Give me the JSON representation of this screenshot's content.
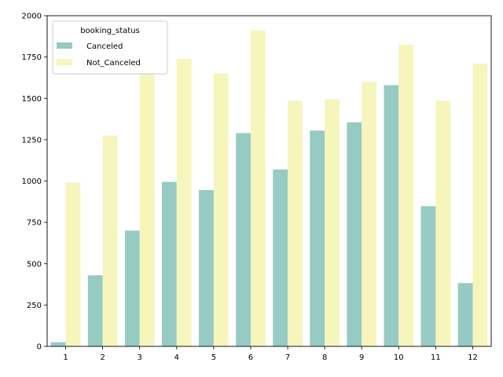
{
  "chart_data": {
    "type": "bar",
    "categories": [
      "1",
      "2",
      "3",
      "4",
      "5",
      "6",
      "7",
      "8",
      "9",
      "10",
      "11",
      "12"
    ],
    "series": [
      {
        "name": "Canceled",
        "color": "#95cbc3",
        "values": [
          25,
          430,
          700,
          995,
          945,
          1290,
          1070,
          1305,
          1355,
          1580,
          848,
          383
        ]
      },
      {
        "name": "Not_Canceled",
        "color": "#f5f5bc",
        "values": [
          990,
          1275,
          1655,
          1740,
          1650,
          1910,
          1485,
          1495,
          1600,
          1825,
          1485,
          1710
        ]
      }
    ],
    "title": "",
    "xlabel": "",
    "ylabel": "",
    "ylim": [
      0,
      2000
    ],
    "yticks": [
      0,
      250,
      500,
      750,
      1000,
      1250,
      1500,
      1750,
      2000
    ],
    "legend": {
      "title": "booking_status",
      "position": "upper-left"
    },
    "grid": false
  }
}
